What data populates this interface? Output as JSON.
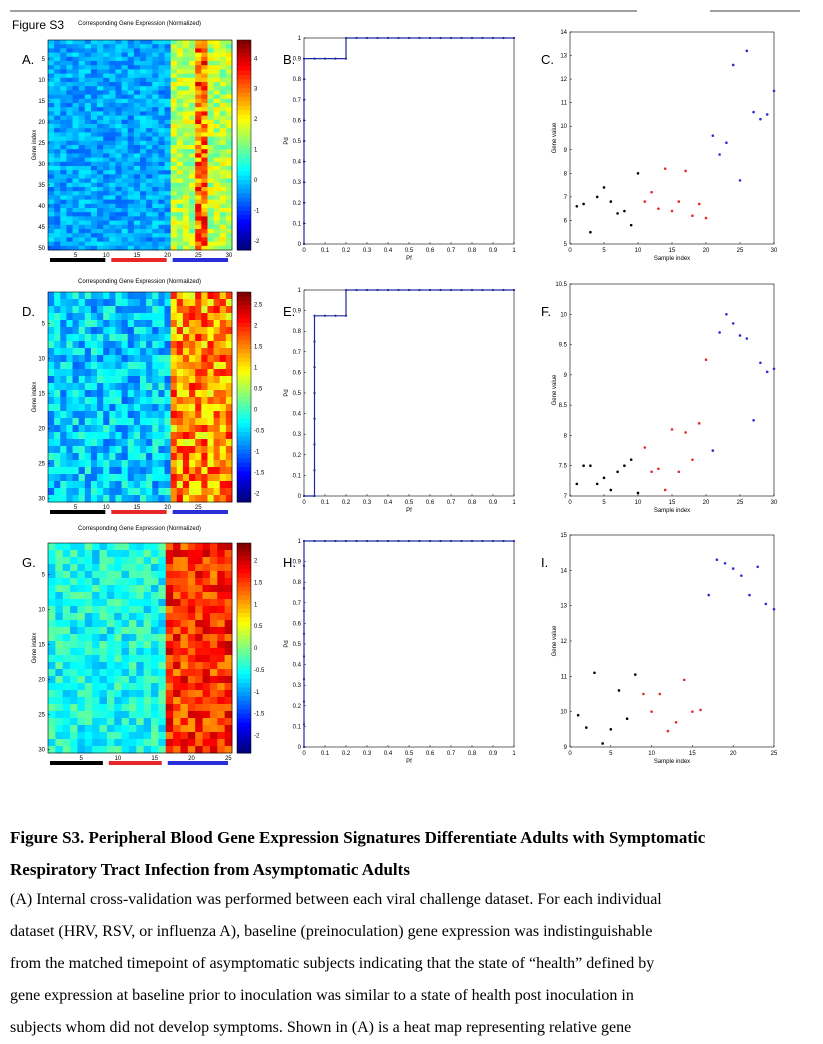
{
  "figure_label": "Figure S3",
  "heatmap_title": "Corresponding Gene Expression (Normalized)",
  "gene_index_label": "Gene index",
  "pd_label": "Pd",
  "pf_label": "Pf",
  "gene_value_label": "Gene value",
  "sample_index_label": "Sample index",
  "panel_letters": [
    "A.",
    "B.",
    "C.",
    "D.",
    "E.",
    "F.",
    "G.",
    "H.",
    "I."
  ],
  "colors": {
    "black_group": "#000000",
    "red_group": "#e8262a",
    "blue_group": "#2a2ed8",
    "roc_line": "#1f2a9c"
  },
  "caption": {
    "title_line1": "Figure S3. Peripheral Blood Gene Expression Signatures Differentiate Adults with Symptomatic",
    "title_line2": "Respiratory Tract Infection from Asymptomatic Adults",
    "body_lines": [
      "(A) Internal cross-validation was performed between each viral challenge dataset. For each individual",
      "dataset (HRV, RSV, or influenza A), baseline (preinoculation) gene expression was indistinguishable",
      "from the matched timepoint of asymptomatic subjects indicating that the state of “health” defined by",
      "gene expression at baseline prior to inoculation was similar to a state of health post inoculation in",
      "subjects whom did not develop symptoms. Shown in (A) is a heat map representing relative gene"
    ]
  },
  "chart_data": [
    {
      "panel": "A.",
      "type": "heatmap",
      "title": "Corresponding Gene Expression (Normalized)",
      "ylabel": "Gene index",
      "rows": 50,
      "cols": 30,
      "x_ticks": [
        5,
        10,
        15,
        20,
        25,
        30
      ],
      "y_ticks": [
        5,
        10,
        15,
        20,
        25,
        30,
        35,
        40,
        45,
        50
      ],
      "colorbar_ticks": [
        4,
        3,
        2,
        1,
        0,
        -1,
        -2
      ],
      "clim": [
        -2.3,
        4.6
      ],
      "groups": [
        {
          "color": "black",
          "from": 1,
          "to": 10
        },
        {
          "color": "red",
          "from": 11,
          "to": 20
        },
        {
          "color": "blue",
          "from": 21,
          "to": 30
        }
      ]
    },
    {
      "panel": "B.",
      "type": "line",
      "xlabel": "Pf",
      "ylabel": "Pd",
      "xlim": [
        0,
        1
      ],
      "ylim": [
        0,
        1
      ],
      "x_ticks": [
        "0",
        "0.1",
        "0.2",
        "0.3",
        "0.4",
        "0.5",
        "0.6",
        "0.7",
        "0.8",
        "0.9",
        "1"
      ],
      "y_ticks": [
        "0",
        "0.1",
        "0.2",
        "0.3",
        "0.4",
        "0.5",
        "0.6",
        "0.7",
        "0.8",
        "0.9",
        "1"
      ],
      "x": [
        0,
        0,
        0,
        0,
        0,
        0,
        0,
        0,
        0,
        0,
        0.05,
        0.1,
        0.15,
        0.2,
        0.2,
        0.25,
        0.3,
        0.35,
        0.4,
        0.45,
        0.5,
        0.55,
        0.6,
        0.65,
        0.7,
        0.75,
        0.8,
        0.85,
        0.9,
        0.95,
        1
      ],
      "y": [
        0,
        0.1,
        0.2,
        0.3,
        0.4,
        0.5,
        0.6,
        0.7,
        0.8,
        0.9,
        0.9,
        0.9,
        0.9,
        0.9,
        1,
        1,
        1,
        1,
        1,
        1,
        1,
        1,
        1,
        1,
        1,
        1,
        1,
        1,
        1,
        1,
        1
      ]
    },
    {
      "panel": "C.",
      "type": "scatter",
      "xlabel": "Sample index",
      "ylabel": "Gene value",
      "xlim": [
        0,
        30
      ],
      "ylim": [
        5,
        14
      ],
      "x_ticks": [
        0,
        5,
        10,
        15,
        20,
        25,
        30
      ],
      "y_ticks": [
        5,
        6,
        7,
        8,
        9,
        10,
        11,
        12,
        13,
        14
      ],
      "series": [
        {
          "color": "black",
          "x": [
            1,
            2,
            3,
            4,
            5,
            6,
            7,
            8,
            9,
            10
          ],
          "y": [
            6.6,
            6.7,
            5.5,
            7.0,
            7.4,
            6.8,
            6.3,
            6.4,
            5.8,
            8.0
          ]
        },
        {
          "color": "red",
          "x": [
            11,
            12,
            13,
            14,
            15,
            16,
            17,
            18,
            19,
            20
          ],
          "y": [
            6.8,
            7.2,
            6.5,
            8.2,
            6.4,
            6.8,
            8.1,
            6.2,
            6.7,
            6.1
          ]
        },
        {
          "color": "blue",
          "x": [
            21,
            22,
            23,
            24,
            25,
            26,
            27,
            28,
            29,
            30
          ],
          "y": [
            9.6,
            8.8,
            9.3,
            12.6,
            7.7,
            13.2,
            10.6,
            10.3,
            10.5,
            11.5
          ]
        }
      ]
    },
    {
      "panel": "D.",
      "type": "heatmap",
      "title": "Corresponding Gene Expression (Normalized)",
      "ylabel": "Gene index",
      "rows": 30,
      "cols": 30,
      "x_ticks": [
        5,
        10,
        15,
        20,
        25
      ],
      "y_ticks": [
        5,
        10,
        15,
        20,
        25,
        30
      ],
      "colorbar_ticks": [
        2.5,
        2,
        1.5,
        1,
        0.5,
        0,
        -0.5,
        -1,
        -1.5,
        -2
      ],
      "clim": [
        -2.2,
        2.8
      ],
      "groups": [
        {
          "color": "black",
          "from": 1,
          "to": 10
        },
        {
          "color": "red",
          "from": 11,
          "to": 20
        },
        {
          "color": "blue",
          "from": 21,
          "to": 30
        }
      ]
    },
    {
      "panel": "E.",
      "type": "line",
      "xlabel": "Pf",
      "ylabel": "Pd",
      "xlim": [
        0,
        1
      ],
      "ylim": [
        0,
        1
      ],
      "x_ticks": [
        "0",
        "0.1",
        "0.2",
        "0.3",
        "0.4",
        "0.5",
        "0.6",
        "0.7",
        "0.8",
        "0.9",
        "1"
      ],
      "y_ticks": [
        "0",
        "0.1",
        "0.2",
        "0.3",
        "0.4",
        "0.5",
        "0.6",
        "0.7",
        "0.8",
        "0.9",
        "1"
      ],
      "x": [
        0,
        0.05,
        0.05,
        0.05,
        0.05,
        0.05,
        0.05,
        0.05,
        0.05,
        0.1,
        0.15,
        0.2,
        0.2,
        0.25,
        0.3,
        0.35,
        0.4,
        0.45,
        0.5,
        0.55,
        0.6,
        0.65,
        0.7,
        0.75,
        0.8,
        0.85,
        0.9,
        0.95,
        1
      ],
      "y": [
        0,
        0,
        0.125,
        0.25,
        0.375,
        0.5,
        0.625,
        0.75,
        0.875,
        0.875,
        0.875,
        0.875,
        1,
        1,
        1,
        1,
        1,
        1,
        1,
        1,
        1,
        1,
        1,
        1,
        1,
        1,
        1,
        1,
        1
      ]
    },
    {
      "panel": "F.",
      "type": "scatter",
      "xlabel": "Sample index",
      "ylabel": "Gene value",
      "xlim": [
        0,
        30
      ],
      "ylim": [
        7,
        10.5
      ],
      "x_ticks": [
        0,
        5,
        10,
        15,
        20,
        25,
        30
      ],
      "y_ticks": [
        7,
        7.5,
        8,
        8.5,
        9,
        9.5,
        10,
        10.5
      ],
      "series": [
        {
          "color": "black",
          "x": [
            1,
            2,
            3,
            4,
            5,
            6,
            7,
            8,
            9,
            10
          ],
          "y": [
            7.2,
            7.5,
            7.5,
            7.2,
            7.3,
            7.1,
            7.4,
            7.5,
            7.6,
            7.05
          ]
        },
        {
          "color": "red",
          "x": [
            11,
            12,
            13,
            14,
            15,
            16,
            17,
            18,
            19,
            20
          ],
          "y": [
            7.8,
            7.4,
            7.45,
            7.1,
            8.1,
            7.4,
            8.05,
            7.6,
            8.2,
            9.25
          ]
        },
        {
          "color": "blue",
          "x": [
            21,
            22,
            23,
            24,
            25,
            26,
            27,
            28,
            29,
            30
          ],
          "y": [
            7.75,
            9.7,
            10.0,
            9.85,
            9.65,
            9.6,
            8.25,
            9.2,
            9.05,
            9.1
          ]
        }
      ]
    },
    {
      "panel": "G.",
      "type": "heatmap",
      "title": "Corresponding Gene Expression (Normalized)",
      "ylabel": "Gene index",
      "rows": 30,
      "cols": 25,
      "x_ticks": [
        5,
        10,
        15,
        20,
        25
      ],
      "y_ticks": [
        5,
        10,
        15,
        20,
        25,
        30
      ],
      "colorbar_ticks": [
        2,
        1.5,
        1,
        0.5,
        0,
        -0.5,
        -1,
        -1.5,
        -2
      ],
      "clim": [
        -2.4,
        2.4
      ],
      "groups": [
        {
          "color": "black",
          "from": 1,
          "to": 8
        },
        {
          "color": "red",
          "from": 9,
          "to": 16
        },
        {
          "color": "blue",
          "from": 17,
          "to": 25
        }
      ]
    },
    {
      "panel": "H.",
      "type": "line",
      "xlabel": "Pf",
      "ylabel": "Pd",
      "xlim": [
        0,
        1
      ],
      "ylim": [
        0,
        1
      ],
      "x_ticks": [
        "0",
        "0.1",
        "0.2",
        "0.3",
        "0.4",
        "0.5",
        "0.6",
        "0.7",
        "0.8",
        "0.9",
        "1"
      ],
      "y_ticks": [
        "0",
        "0.1",
        "0.2",
        "0.3",
        "0.4",
        "0.5",
        "0.6",
        "0.7",
        "0.8",
        "0.9",
        "1"
      ],
      "x": [
        0,
        0,
        0,
        0,
        0,
        0,
        0,
        0,
        0,
        0,
        0.05,
        0.1,
        0.15,
        0.2,
        0.25,
        0.3,
        0.35,
        0.4,
        0.45,
        0.5,
        0.55,
        0.6,
        0.65,
        0.7,
        0.75,
        0.8,
        0.85,
        0.9,
        0.95,
        1
      ],
      "y": [
        0,
        0.11,
        0.22,
        0.33,
        0.44,
        0.55,
        0.66,
        0.77,
        0.88,
        1,
        1,
        1,
        1,
        1,
        1,
        1,
        1,
        1,
        1,
        1,
        1,
        1,
        1,
        1,
        1,
        1,
        1,
        1,
        1,
        1
      ]
    },
    {
      "panel": "I.",
      "type": "scatter",
      "xlabel": "Sample index",
      "ylabel": "Gene value",
      "xlim": [
        0,
        25
      ],
      "ylim": [
        9,
        15
      ],
      "x_ticks": [
        0,
        5,
        10,
        15,
        20,
        25
      ],
      "y_ticks": [
        9,
        10,
        11,
        12,
        13,
        14,
        15
      ],
      "series": [
        {
          "color": "black",
          "x": [
            1,
            2,
            3,
            4,
            5,
            6,
            7,
            8
          ],
          "y": [
            9.9,
            9.55,
            11.1,
            9.1,
            9.5,
            10.6,
            9.8,
            11.05
          ]
        },
        {
          "color": "red",
          "x": [
            9,
            10,
            11,
            12,
            13,
            14,
            15,
            16
          ],
          "y": [
            10.5,
            10.0,
            10.5,
            9.45,
            9.7,
            10.9,
            10.0,
            10.05
          ]
        },
        {
          "color": "blue",
          "x": [
            17,
            18,
            19,
            20,
            21,
            22,
            23,
            24,
            25
          ],
          "y": [
            13.3,
            14.3,
            14.2,
            14.05,
            13.85,
            13.3,
            14.1,
            13.05,
            12.9
          ]
        }
      ]
    }
  ]
}
